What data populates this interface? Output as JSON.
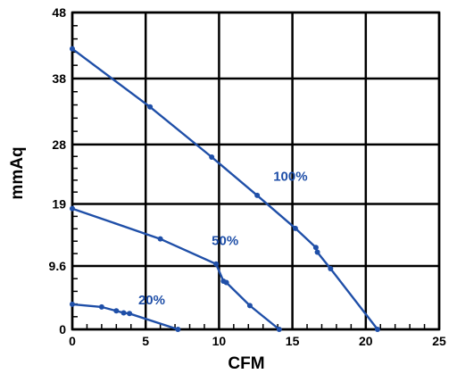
{
  "chart_data": {
    "type": "line",
    "xlabel": "CFM",
    "ylabel": "mmAq",
    "xlim": [
      0,
      25
    ],
    "ylim": [
      0,
      48
    ],
    "x_ticks": [
      0,
      5,
      10,
      15,
      20,
      25
    ],
    "x_tick_labels": [
      "0",
      "5",
      "10",
      "15",
      "20",
      "25"
    ],
    "y_ticks": [
      0,
      9.6,
      19,
      28,
      38,
      48
    ],
    "y_tick_labels": [
      "0",
      "9.6",
      "19",
      "28",
      "38",
      "48"
    ],
    "grid": true,
    "colors": {
      "series": "#1f4fa8",
      "grid": "#000000"
    },
    "series": [
      {
        "name": "100%",
        "label_at": [
          13.7,
          22.5
        ],
        "x": [
          0,
          5.3,
          9.5,
          12.6,
          15.2,
          16.6,
          16.7,
          17.6,
          20.8
        ],
        "y": [
          42.5,
          33.7,
          26.1,
          20.3,
          15.3,
          12.4,
          11.7,
          9.2,
          0
        ]
      },
      {
        "name": "50%",
        "label_at": [
          9.5,
          12.8
        ],
        "x": [
          0,
          6.0,
          9.8,
          10.3,
          10.5,
          12.1,
          14.1
        ],
        "y": [
          18.3,
          13.7,
          9.9,
          7.3,
          7.1,
          3.6,
          0
        ]
      },
      {
        "name": "20%",
        "label_at": [
          4.5,
          3.8
        ],
        "x": [
          0,
          2.0,
          3.0,
          3.5,
          3.9,
          7.2
        ],
        "y": [
          3.8,
          3.4,
          2.8,
          2.5,
          2.4,
          0
        ]
      }
    ]
  }
}
